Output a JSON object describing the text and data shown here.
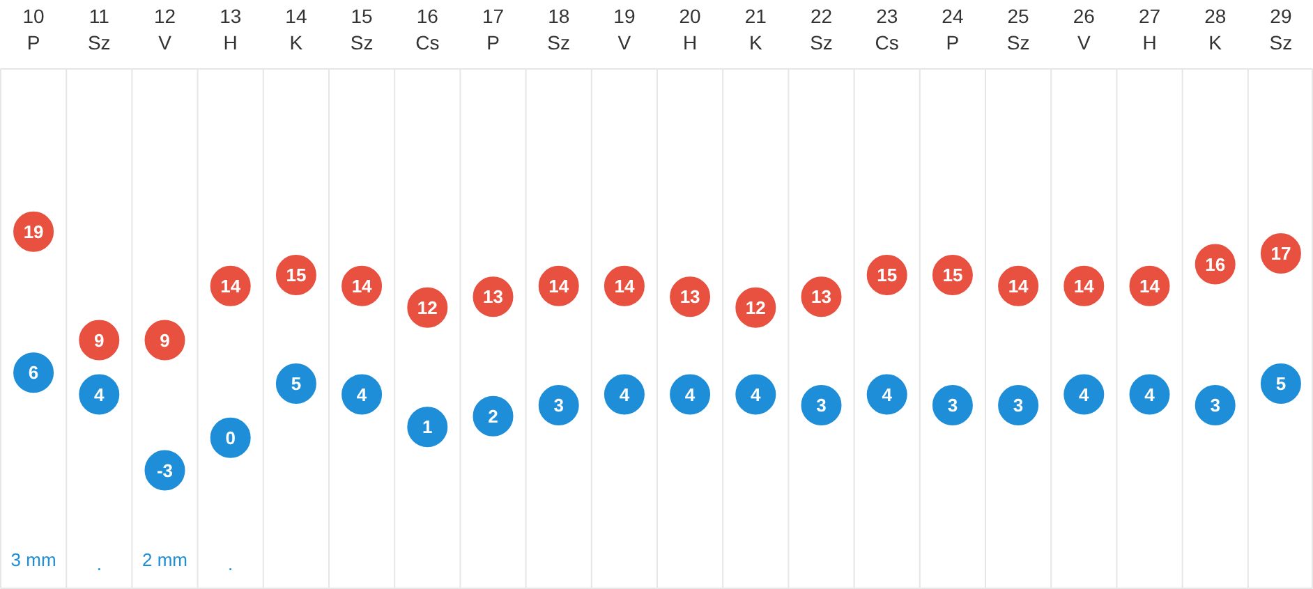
{
  "chart_data": {
    "type": "scatter",
    "categories": [
      "10\nP",
      "11\nSz",
      "12\nV",
      "13\nH",
      "14\nK",
      "15\nSz",
      "16\nCs",
      "17\nP",
      "18\nSz",
      "19\nV",
      "20\nH",
      "21\nK",
      "22\nSz",
      "23\nCs",
      "24\nP",
      "25\nSz",
      "26\nV",
      "27\nH",
      "28\nK",
      "29\nSz"
    ],
    "series": [
      {
        "color": "#e8503f",
        "values": [
          19,
          9,
          9,
          14,
          15,
          14,
          12,
          13,
          14,
          14,
          13,
          12,
          13,
          15,
          15,
          14,
          14,
          14,
          16,
          17
        ]
      },
      {
        "color": "#1e8ed8",
        "values": [
          6,
          4,
          -3,
          0,
          5,
          4,
          1,
          2,
          3,
          4,
          4,
          4,
          3,
          4,
          3,
          3,
          4,
          4,
          3,
          5
        ]
      }
    ],
    "marker": "circle",
    "data_labels": true,
    "tick_labels": "x",
    "annotations": [
      "3 mm",
      ".",
      "2 mm",
      "."
    ]
  }
}
